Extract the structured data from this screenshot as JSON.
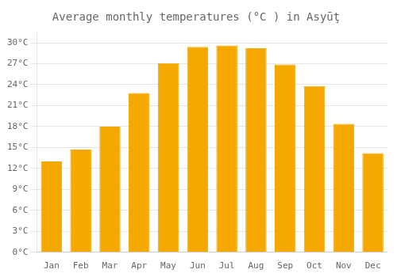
{
  "chart_data": {
    "type": "bar",
    "title": "Average monthly temperatures (°C ) in Asyūţ",
    "categories": [
      "Jan",
      "Feb",
      "Mar",
      "Apr",
      "May",
      "Jun",
      "Jul",
      "Aug",
      "Sep",
      "Oct",
      "Nov",
      "Dec"
    ],
    "values": [
      13.0,
      14.7,
      18.0,
      22.8,
      27.1,
      29.4,
      29.6,
      29.2,
      26.9,
      23.8,
      18.4,
      14.2
    ],
    "color": "#F5A800",
    "ylim": [
      0,
      31.5
    ],
    "yticks": [
      {
        "value": 0,
        "label": "0°C"
      },
      {
        "value": 3,
        "label": "3°C"
      },
      {
        "value": 6,
        "label": "6°C"
      },
      {
        "value": 9,
        "label": "9°C"
      },
      {
        "value": 12,
        "label": "12°C"
      },
      {
        "value": 15,
        "label": "15°C"
      },
      {
        "value": 18,
        "label": "18°C"
      },
      {
        "value": 21,
        "label": "21°C"
      },
      {
        "value": 24,
        "label": "24°C"
      },
      {
        "value": 27,
        "label": "27°C"
      },
      {
        "value": 30,
        "label": "30°C"
      }
    ],
    "grid": true
  }
}
